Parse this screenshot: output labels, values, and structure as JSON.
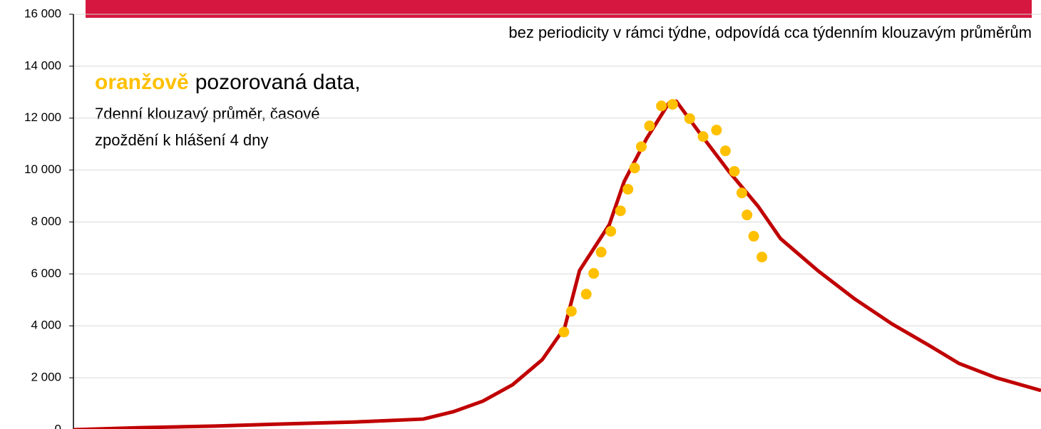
{
  "chart_data": {
    "type": "line",
    "subtitle": "bez periodicity v rámci týdne, odpovídá cca týdenním klouzavým průměrům",
    "annotations": {
      "highlight": "oranžově",
      "first_line": "pozorovaná data,",
      "second_line": "7denní klouzavý průměr, časové",
      "third_line": "zpoždění k hlášení 4 dny"
    },
    "xlim": [
      0,
      130
    ],
    "ylim": [
      0,
      16000
    ],
    "yticks": [
      {
        "value": 0,
        "label": "0"
      },
      {
        "value": 2000,
        "label": "2 000"
      },
      {
        "value": 4000,
        "label": "4 000"
      },
      {
        "value": 6000,
        "label": "6 000"
      },
      {
        "value": 8000,
        "label": "8 000"
      },
      {
        "value": 10000,
        "label": "10 000"
      },
      {
        "value": 12000,
        "label": "12 000"
      },
      {
        "value": 14000,
        "label": "14 000"
      },
      {
        "value": 16000,
        "label": "16 000"
      }
    ],
    "grid": true,
    "series": [
      {
        "color": "#c00000",
        "style": "line",
        "x": [
          0,
          9,
          19,
          28,
          38,
          47,
          51,
          55,
          59,
          63,
          66,
          68,
          72,
          74,
          77,
          80,
          81,
          84,
          88,
          92,
          95,
          100,
          105,
          110,
          115,
          119,
          124,
          130
        ],
        "values": [
          0,
          80,
          140,
          220,
          300,
          410,
          690,
          1100,
          1730,
          2700,
          3930,
          6130,
          7900,
          9560,
          11210,
          12580,
          12650,
          11480,
          9970,
          8600,
          7360,
          6130,
          5030,
          4070,
          3240,
          2550,
          2000,
          1510
        ]
      },
      {
        "color": "#ffc000",
        "style": "dots",
        "x": [
          65.9,
          66.9,
          68.9,
          69.9,
          70.9,
          72.2,
          73.5,
          74.5,
          75.4,
          76.3,
          77.4,
          79.0,
          80.5,
          82.8,
          84.6,
          86.4,
          87.6,
          88.8,
          89.8,
          90.5,
          91.4,
          92.5
        ],
        "values": [
          3760,
          4560,
          5220,
          6020,
          6840,
          7640,
          8430,
          9260,
          10080,
          10900,
          11700,
          12470,
          12530,
          11980,
          11290,
          11540,
          10740,
          9950,
          9120,
          8270,
          7450,
          6650
        ]
      }
    ]
  }
}
